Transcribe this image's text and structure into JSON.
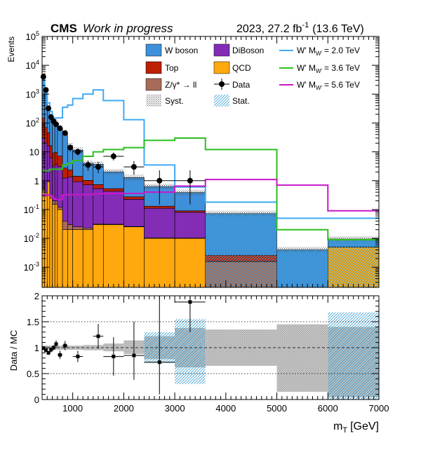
{
  "header": {
    "experiment": "CMS",
    "status": "Work in progress",
    "lumi_prefix": "2023, 27.2 fb",
    "lumi_exp": "-1",
    "energy": "(13.6 TeV)"
  },
  "legend": {
    "w_boson": "W boson",
    "diboson": "DiBoson",
    "top": "Top",
    "qcd": "QCD",
    "zll": "Z/γ* → ll",
    "data": "Data",
    "syst": "Syst.",
    "stat": "Stat.",
    "wp_prefix": "W' M",
    "wp_sub": "W'",
    "wp1_mass": "= 2.0 TeV",
    "wp2_mass": "= 3.6 TeV",
    "wp3_mass": "= 5.6 TeV"
  },
  "colors": {
    "w_boson": "#3f90da",
    "diboson": "#832db6",
    "top": "#bd1f01",
    "qcd": "#ffa90e",
    "zll": "#a96b59",
    "wp_2000": "#3fa9f5",
    "wp_3600": "#2bbf1f",
    "wp_5600": "#c818c8"
  },
  "chart_data": [
    {
      "type": "area",
      "ylabel": "Events",
      "yscale": "log",
      "xlim": [
        400,
        7000
      ],
      "ylim": [
        0.0002,
        100000
      ],
      "y_tick_exponents": [
        "-3",
        "-2",
        "-1"
      ],
      "y_tick_plain": [
        "1",
        "10"
      ],
      "y_tick_exponents_high": [
        "2",
        "3",
        "4",
        "5"
      ],
      "bin_edges": [
        400,
        450,
        500,
        550,
        600,
        650,
        700,
        800,
        900,
        1000,
        1200,
        1400,
        1600,
        2000,
        2400,
        3000,
        3600,
        5000,
        6000,
        7000
      ],
      "stack": [
        {
          "name": "QCD",
          "values": [
            0.45,
            0.3,
            0.9,
            0.25,
            0.15,
            0.15,
            0.1,
            0.02,
            0.02,
            0.02,
            0.02,
            0.03,
            0.03,
            0.025,
            0.01,
            0.01,
            6e-05,
            4e-05,
            0.005
          ]
        },
        {
          "name": "Z/γ* → ll",
          "values": [
            0.1,
            0.1,
            0.1,
            0.05,
            0.05,
            0.05,
            0.02,
            0.02,
            0.01,
            0.005,
            0.003,
            0.002,
            0.001,
            0.0008,
            0.0005,
            0.0003,
            0.0015,
            1e-05,
            1e-05
          ]
        },
        {
          "name": "DiBoson",
          "values": [
            30,
            20,
            15,
            6,
            3,
            3.5,
            3,
            1.2,
            1.3,
            0.9,
            0.7,
            0.5,
            0.4,
            0.2,
            0.1,
            0.07,
            3e-05,
            1e-05,
            1e-05
          ]
        },
        {
          "name": "Top",
          "values": [
            120,
            50,
            30,
            10,
            6,
            6,
            4,
            1.5,
            1.0,
            0.5,
            0.3,
            0.2,
            0.1,
            0.05,
            0.02,
            0.01,
            0.001,
            1e-05,
            1e-05
          ]
        },
        {
          "name": "W boson",
          "values": [
            3500,
            1200,
            300,
            150,
            100,
            100,
            60,
            40,
            14,
            10,
            3,
            3,
            1.5,
            1,
            0.5,
            0.3,
            0.07,
            0.004,
            0.0045
          ]
        }
      ],
      "signals": [
        {
          "name": "W' M_W' = 2.0 TeV",
          "values": [
            4000,
            1500,
            500,
            250,
            150,
            150,
            150,
            350,
            420,
            700,
            1000,
            1400,
            600,
            130,
            3.5,
            0.6,
            0.18,
            0.05,
            0.05
          ]
        },
        {
          "name": "W' M_W' = 3.6 TeV",
          "values": [
            2.2,
            2.2,
            2.2,
            2.5,
            2.5,
            2.5,
            2.5,
            3.5,
            4,
            5,
            7,
            10,
            12,
            14,
            25,
            30,
            12,
            0.02,
            0.009
          ]
        },
        {
          "name": "W' M_W' = 5.6 TeV",
          "values": [
            0.33,
            0.3,
            0.32,
            0.3,
            0.25,
            0.22,
            0.22,
            0.32,
            0.33,
            0.33,
            0.33,
            0.35,
            0.36,
            0.36,
            0.4,
            0.65,
            1.1,
            0.7,
            0.09
          ]
        }
      ],
      "data_points": [
        {
          "x": 425,
          "xerr": 25,
          "y": 4000,
          "ylo": 3800,
          "yhi": 4200
        },
        {
          "x": 475,
          "xerr": 25,
          "y": 1400,
          "ylo": 1300,
          "yhi": 1500
        },
        {
          "x": 525,
          "xerr": 25,
          "y": 320,
          "ylo": 290,
          "yhi": 350
        },
        {
          "x": 575,
          "xerr": 25,
          "y": 160,
          "ylo": 140,
          "yhi": 180
        },
        {
          "x": 625,
          "xerr": 25,
          "y": 115,
          "ylo": 100,
          "yhi": 130
        },
        {
          "x": 675,
          "xerr": 25,
          "y": 90,
          "ylo": 78,
          "yhi": 103
        },
        {
          "x": 750,
          "xerr": 50,
          "y": 65,
          "ylo": 55,
          "yhi": 75
        },
        {
          "x": 850,
          "xerr": 50,
          "y": 45,
          "ylo": 37,
          "yhi": 53
        },
        {
          "x": 950,
          "xerr": 50,
          "y": 14,
          "ylo": 10.5,
          "yhi": 18
        },
        {
          "x": 1100,
          "xerr": 100,
          "y": 10,
          "ylo": 7.5,
          "yhi": 13
        },
        {
          "x": 1300,
          "xerr": 100,
          "y": 3.5,
          "ylo": 2.2,
          "yhi": 5
        },
        {
          "x": 1500,
          "xerr": 100,
          "y": 3.0,
          "ylo": 1.8,
          "yhi": 4.5
        },
        {
          "x": 1800,
          "xerr": 200,
          "y": 7,
          "ylo": 5,
          "yhi": 9.5
        },
        {
          "x": 2200,
          "xerr": 200,
          "y": 3,
          "ylo": 1.6,
          "yhi": 4.8
        },
        {
          "x": 2700,
          "xerr": 300,
          "y": 1.0,
          "ylo": 0.15,
          "yhi": 2.3
        },
        {
          "x": 3300,
          "xerr": 300,
          "y": 1.0,
          "ylo": 0.15,
          "yhi": 2.3
        }
      ]
    },
    {
      "type": "scatter",
      "ylabel": "Data / MC",
      "xlabel": "m",
      "xlabel_sub": "T",
      "xlabel_unit": "[GeV]",
      "xlim": [
        400,
        7000
      ],
      "ylim": [
        0,
        2
      ],
      "x_ticks": [
        "1000",
        "2000",
        "3000",
        "4000",
        "5000",
        "6000",
        "7000"
      ],
      "y_ticks": [
        "0",
        "0.5",
        "1",
        "1.5",
        "2"
      ],
      "syst_band": [
        {
          "x0": 400,
          "x1": 1200,
          "lo": 0.96,
          "hi": 1.04
        },
        {
          "x0": 1200,
          "x1": 1600,
          "lo": 0.95,
          "hi": 1.05
        },
        {
          "x0": 1600,
          "x1": 2000,
          "lo": 0.93,
          "hi": 1.08
        },
        {
          "x0": 2000,
          "x1": 2400,
          "lo": 0.88,
          "hi": 1.14
        },
        {
          "x0": 2400,
          "x1": 3000,
          "lo": 0.78,
          "hi": 1.22
        },
        {
          "x0": 3000,
          "x1": 3600,
          "lo": 0.62,
          "hi": 1.38
        },
        {
          "x0": 3600,
          "x1": 5000,
          "lo": 0.65,
          "hi": 1.35
        },
        {
          "x0": 5000,
          "x1": 6000,
          "lo": 0.15,
          "hi": 1.45
        },
        {
          "x0": 6000,
          "x1": 7000,
          "lo": 0.05,
          "hi": 1.4
        }
      ],
      "stat_band": [
        {
          "x0": 2400,
          "x1": 3000,
          "lo": 0.7,
          "hi": 1.3
        },
        {
          "x0": 3000,
          "x1": 3600,
          "lo": 0.3,
          "hi": 1.55
        },
        {
          "x0": 6000,
          "x1": 7000,
          "lo": 0.0,
          "hi": 1.68
        }
      ],
      "data_points": [
        {
          "x": 425,
          "xerr": 25,
          "y": 0.99,
          "ylo": 0.96,
          "yhi": 1.02
        },
        {
          "x": 475,
          "xerr": 25,
          "y": 0.95,
          "ylo": 0.92,
          "yhi": 0.98
        },
        {
          "x": 525,
          "xerr": 25,
          "y": 0.9,
          "ylo": 0.86,
          "yhi": 0.94
        },
        {
          "x": 575,
          "xerr": 25,
          "y": 0.96,
          "ylo": 0.91,
          "yhi": 1.01
        },
        {
          "x": 625,
          "xerr": 25,
          "y": 1.0,
          "ylo": 0.95,
          "yhi": 1.05
        },
        {
          "x": 675,
          "xerr": 25,
          "y": 1.07,
          "ylo": 1.0,
          "yhi": 1.14
        },
        {
          "x": 750,
          "xerr": 50,
          "y": 0.86,
          "ylo": 0.78,
          "yhi": 0.94
        },
        {
          "x": 850,
          "xerr": 50,
          "y": 1.04,
          "ylo": 0.95,
          "yhi": 1.13
        },
        {
          "x": 1100,
          "xerr": 100,
          "y": 0.83,
          "ylo": 0.72,
          "yhi": 0.94
        },
        {
          "x": 1500,
          "xerr": 100,
          "y": 1.22,
          "ylo": 0.98,
          "yhi": 1.46
        },
        {
          "x": 1800,
          "xerr": 200,
          "y": 0.83,
          "ylo": 0.46,
          "yhi": 1.2
        },
        {
          "x": 2200,
          "xerr": 200,
          "y": 0.85,
          "ylo": 0.38,
          "yhi": 1.5
        },
        {
          "x": 2700,
          "xerr": 300,
          "y": 0.72,
          "ylo": 0.1,
          "yhi": 2.0
        },
        {
          "x": 3300,
          "xerr": 300,
          "y": 1.88,
          "ylo": 1.3,
          "yhi": 2.0
        }
      ]
    }
  ]
}
